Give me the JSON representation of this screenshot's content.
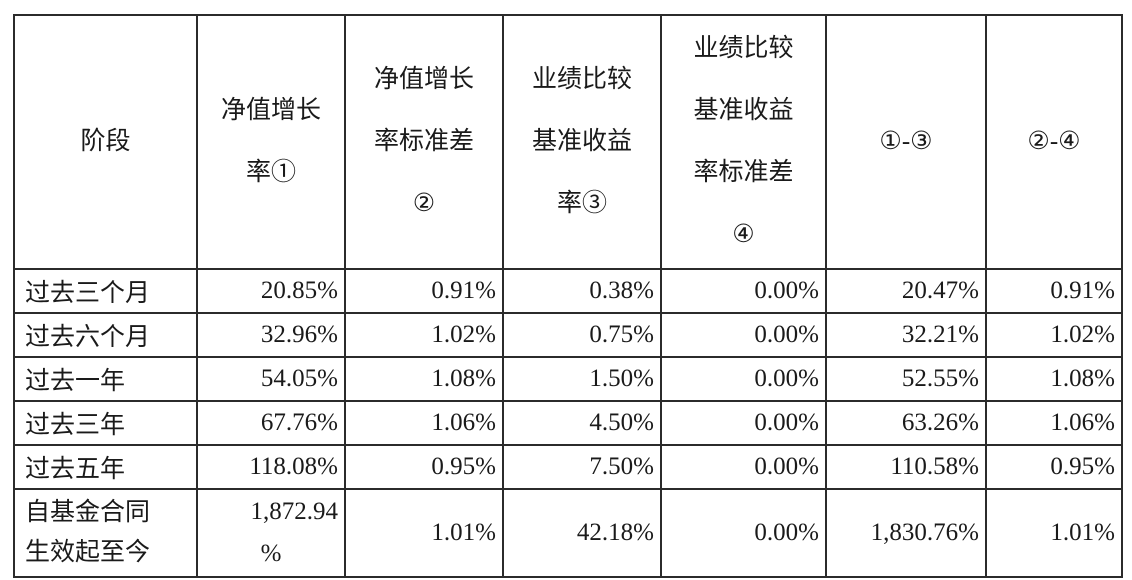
{
  "table": {
    "headers": [
      {
        "lines": [
          "阶段"
        ]
      },
      {
        "lines": [
          "净值增长",
          "率①"
        ]
      },
      {
        "lines": [
          "净值增长",
          "率标准差",
          "②"
        ]
      },
      {
        "lines": [
          "业绩比较",
          "基准收益",
          "率③"
        ]
      },
      {
        "lines": [
          "业绩比较",
          "基准收益",
          "率标准差",
          "④"
        ]
      },
      {
        "lines": [
          "①-③"
        ]
      },
      {
        "lines": [
          "②-④"
        ]
      }
    ],
    "rows": [
      {
        "stage": "过去三个月",
        "cells": [
          "20.85%",
          "0.91%",
          "0.38%",
          "0.00%",
          "20.47%",
          "0.91%"
        ]
      },
      {
        "stage": "过去六个月",
        "cells": [
          "32.96%",
          "1.02%",
          "0.75%",
          "0.00%",
          "32.21%",
          "1.02%"
        ]
      },
      {
        "stage": "过去一年",
        "cells": [
          "54.05%",
          "1.08%",
          "1.50%",
          "0.00%",
          "52.55%",
          "1.08%"
        ]
      },
      {
        "stage": "过去三年",
        "cells": [
          "67.76%",
          "1.06%",
          "4.50%",
          "0.00%",
          "63.26%",
          "1.06%"
        ]
      },
      {
        "stage": "过去五年",
        "cells": [
          "118.08%",
          "0.95%",
          "7.50%",
          "0.00%",
          "110.58%",
          "0.95%"
        ]
      }
    ],
    "last_row": {
      "stage_lines": [
        "自基金合同",
        "生效起至今"
      ],
      "first_cell_lines": [
        "1,872.94",
        "%"
      ],
      "cells": [
        "1.01%",
        "42.18%",
        "0.00%",
        "1,830.76%",
        "1.01%"
      ]
    }
  }
}
